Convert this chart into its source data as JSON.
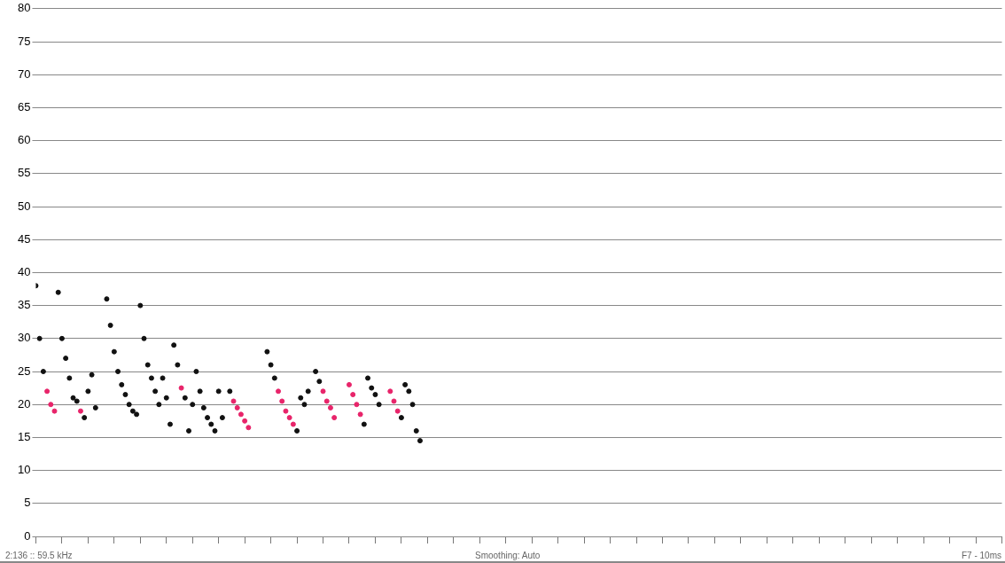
{
  "chart_data": {
    "type": "scatter",
    "categories": [
      null,
      null,
      null,
      null,
      null,
      null,
      null,
      null,
      null,
      null,
      null,
      null,
      null,
      null,
      null,
      null,
      null,
      null,
      null,
      null,
      null,
      null,
      null,
      null,
      null,
      null,
      null,
      null,
      null,
      null,
      null,
      null,
      null,
      null,
      null,
      null,
      null,
      null,
      null,
      null,
      null,
      null,
      null,
      null,
      null,
      null,
      null,
      null,
      null,
      null,
      null,
      null,
      null,
      null,
      null,
      null,
      null,
      null,
      null,
      null,
      null,
      null,
      null,
      null,
      null,
      null,
      null,
      null,
      null,
      null,
      null,
      null,
      null,
      null,
      null,
      null,
      null,
      null,
      null,
      null,
      null,
      null,
      null,
      null,
      null,
      null,
      null,
      null,
      null,
      null,
      null,
      null,
      null,
      null,
      null,
      null,
      null,
      null,
      null,
      null,
      null,
      null,
      null,
      null,
      null,
      null,
      null,
      null,
      null,
      null,
      null,
      null,
      null,
      null,
      null,
      null,
      null,
      null,
      null,
      null,
      null,
      null,
      null,
      null,
      null,
      null,
      null,
      null,
      null,
      null,
      null,
      null,
      null,
      null,
      null,
      null,
      null,
      null,
      null,
      null,
      null,
      null,
      null,
      null,
      null,
      null,
      null,
      null,
      null,
      null,
      null,
      null,
      null,
      null,
      null,
      null,
      null,
      null,
      null,
      null,
      null,
      null,
      null,
      null,
      null,
      null,
      null,
      null,
      null,
      null,
      null,
      null,
      null,
      null,
      null,
      null,
      null,
      null,
      null,
      null,
      null,
      null,
      null,
      null,
      null,
      null,
      null,
      null,
      null,
      null,
      null,
      null,
      null,
      null,
      null,
      null,
      null,
      null,
      null,
      null,
      null,
      null,
      null,
      null,
      null,
      null,
      null,
      null,
      null,
      null,
      null,
      null,
      null,
      null,
      null,
      null,
      null,
      null,
      null,
      null,
      null,
      null,
      null,
      null,
      null,
      null,
      null,
      null,
      null,
      null,
      null,
      null,
      null,
      null,
      null,
      null,
      null,
      null,
      null,
      null,
      null,
      null,
      null,
      null,
      null,
      null,
      null,
      null,
      null,
      null,
      null,
      null,
      null,
      null,
      null,
      null,
      null,
      null,
      null,
      null
    ],
    "series": [
      {
        "color": "#111111",
        "values": [
          38,
          30,
          25,
          null,
          null,
          null,
          37,
          30,
          27,
          24,
          21,
          20.5,
          null,
          18,
          22,
          24.5,
          19.5,
          null,
          null,
          36,
          32,
          28,
          25,
          23,
          21.5,
          20,
          19,
          18.5,
          35,
          30,
          26,
          24,
          22,
          20,
          24,
          21,
          17,
          29,
          26,
          null,
          21,
          16,
          20,
          25,
          22,
          19.5,
          18,
          17,
          16,
          22,
          18,
          null,
          22,
          null,
          null,
          null,
          null,
          null,
          null,
          null,
          null,
          null,
          28,
          26,
          24,
          null,
          null,
          null,
          null,
          null,
          16,
          21,
          20,
          22,
          null,
          25,
          23.5,
          null,
          null,
          null,
          null,
          null,
          null,
          null,
          null,
          null,
          null,
          null,
          17,
          24,
          22.5,
          21.5,
          20,
          null,
          null,
          null,
          null,
          null,
          18,
          23,
          22,
          20,
          16,
          14.5,
          null,
          null,
          null,
          null,
          null,
          null,
          null,
          null,
          null,
          null,
          null,
          null,
          null,
          null,
          null,
          null,
          null,
          null,
          null,
          null,
          null,
          null,
          null,
          null,
          null,
          null,
          null,
          null,
          null,
          null,
          null,
          null,
          null,
          null,
          null,
          null,
          null,
          null,
          null,
          null,
          null,
          null,
          null,
          null,
          null,
          null,
          null,
          null,
          null,
          null,
          null,
          null,
          null,
          null,
          null,
          null,
          null,
          null,
          null,
          null,
          null,
          null,
          null,
          null,
          null,
          null,
          null,
          null,
          null,
          null,
          null,
          null,
          null,
          null,
          null,
          null,
          null,
          null,
          null,
          null,
          null,
          null,
          null,
          null,
          null,
          null,
          null,
          null,
          null,
          null,
          null,
          null,
          null,
          null,
          null,
          null,
          null,
          null,
          null,
          null,
          null,
          null,
          null,
          null,
          null,
          null,
          null,
          null,
          null,
          null,
          null,
          null,
          null,
          null,
          null,
          null,
          null,
          null,
          null,
          null,
          null,
          null,
          null,
          null,
          null,
          null,
          null,
          null,
          null,
          null,
          null,
          null,
          null,
          null,
          null,
          null,
          null,
          null,
          null,
          null,
          null,
          null,
          null,
          null,
          null,
          null,
          null,
          null,
          null,
          null,
          null,
          null,
          null,
          null,
          null,
          null
        ]
      },
      {
        "color": "#e8246a",
        "values": [
          null,
          null,
          null,
          22,
          20,
          19,
          null,
          null,
          null,
          null,
          null,
          null,
          19,
          null,
          null,
          null,
          null,
          null,
          null,
          null,
          null,
          null,
          null,
          null,
          null,
          null,
          null,
          null,
          null,
          null,
          null,
          null,
          null,
          null,
          null,
          null,
          null,
          null,
          null,
          22.5,
          null,
          null,
          null,
          null,
          null,
          null,
          null,
          null,
          null,
          null,
          null,
          null,
          null,
          20.5,
          19.5,
          18.5,
          17.5,
          16.5,
          null,
          null,
          null,
          null,
          null,
          null,
          null,
          22,
          20.5,
          19,
          18,
          17,
          null,
          null,
          null,
          null,
          null,
          null,
          null,
          22,
          20.5,
          19.5,
          18,
          null,
          null,
          null,
          23,
          21.5,
          20,
          18.5,
          null,
          null,
          null,
          null,
          null,
          null,
          null,
          22,
          20.5,
          19,
          null,
          null,
          null,
          null,
          null,
          null,
          null,
          null,
          null,
          null,
          null,
          null,
          null,
          null,
          null,
          null,
          null,
          null,
          null,
          null,
          null,
          null,
          null,
          null,
          null,
          null,
          null,
          null,
          null,
          null,
          null,
          null,
          null,
          null,
          null,
          null,
          null,
          null,
          null,
          null,
          null,
          null,
          null,
          null,
          null,
          null,
          null,
          null,
          null,
          null,
          null,
          null,
          null,
          null,
          null,
          null,
          null,
          null,
          null,
          null,
          null,
          null,
          null,
          null,
          null,
          null,
          null,
          null,
          null,
          null,
          null,
          null,
          null,
          null,
          null,
          null,
          null,
          null,
          null,
          null,
          null,
          null,
          null,
          null,
          null,
          null,
          null,
          null,
          null,
          null,
          null,
          null,
          null,
          null,
          null,
          null,
          null,
          null,
          null,
          null,
          null,
          null,
          null,
          null,
          null,
          null,
          null,
          null,
          null,
          null,
          null,
          null,
          null,
          null,
          null,
          null,
          null,
          null,
          null,
          null,
          null,
          null,
          null,
          null,
          null,
          null,
          null,
          null,
          null,
          null,
          null,
          null,
          null,
          null,
          null,
          null,
          null,
          null,
          null,
          null,
          null,
          null,
          null,
          null,
          null,
          null,
          null,
          null,
          null,
          null,
          null,
          null,
          null,
          null,
          null,
          null,
          null,
          null,
          null,
          null,
          null,
          null
        ]
      }
    ],
    "ylim": [
      0,
      80
    ],
    "yticks": [
      0,
      5,
      10,
      15,
      20,
      25,
      30,
      35,
      40,
      45,
      50,
      55,
      60,
      65,
      70,
      75,
      80
    ],
    "grid": "y",
    "legend": false,
    "tick_labels": "y",
    "marker": "circle",
    "annotations": [
      "2:136 :: 59.5 kHz",
      "Smoothing: Auto",
      "F7 - 10ms"
    ]
  }
}
